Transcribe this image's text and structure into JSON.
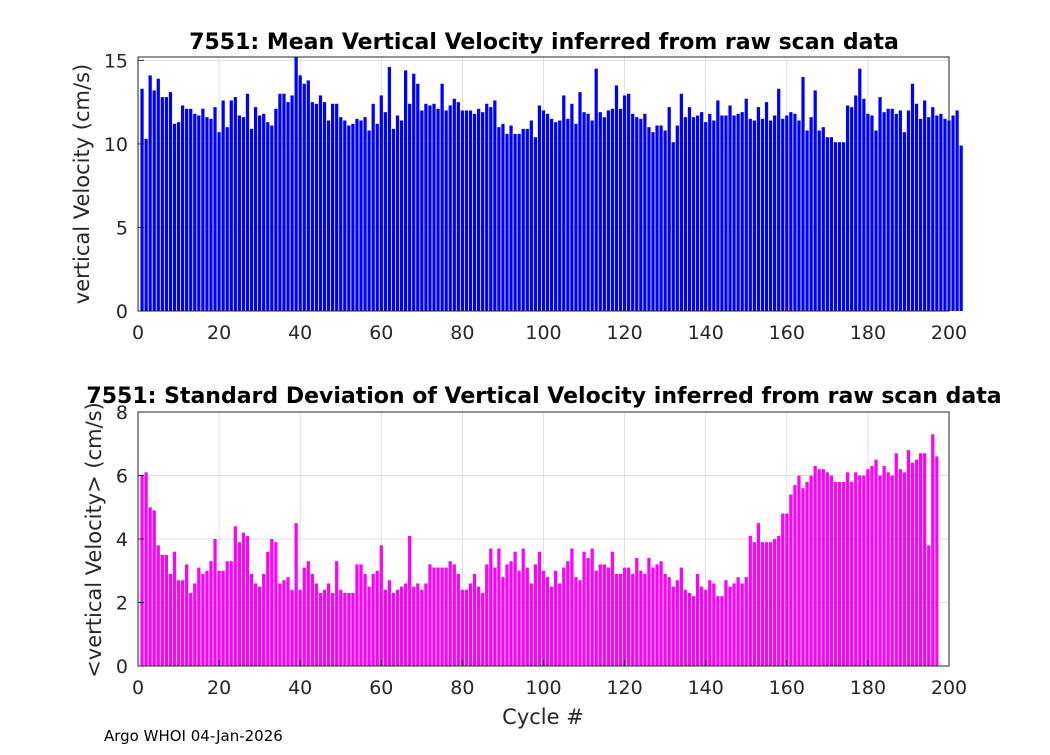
{
  "footer_text": "Argo WHOI 04-Jan-2026",
  "colors": {
    "top_bars": "#0000ff",
    "bottom_bars": "#ff00ff",
    "grid": "#d9d9d9",
    "axis": "#262626"
  },
  "chart_data": [
    {
      "type": "bar",
      "title": "7551: Mean Vertical Velocity inferred from raw scan data",
      "xlabel": "",
      "ylabel": "vertical Velocity (cm/s)",
      "xlim": [
        0,
        200
      ],
      "ylim": [
        0,
        15.2
      ],
      "xticks": [
        0,
        20,
        40,
        60,
        80,
        100,
        120,
        140,
        160,
        180,
        200
      ],
      "yticks": [
        0,
        5,
        10,
        15
      ],
      "grid": true,
      "x_start": 1,
      "values": [
        13.3,
        10.3,
        14.1,
        13.2,
        13.9,
        12.8,
        12.8,
        13.1,
        11.2,
        11.3,
        12.3,
        12.1,
        12.1,
        11.8,
        11.7,
        12.1,
        11.6,
        11.5,
        12.2,
        10.7,
        12.6,
        11.0,
        12.6,
        12.8,
        11.7,
        11.6,
        13.0,
        10.9,
        12.2,
        11.7,
        11.8,
        11.3,
        11.1,
        12.1,
        13.0,
        13.0,
        12.5,
        12.9,
        15.3,
        14.1,
        13.6,
        13.8,
        12.5,
        12.4,
        12.9,
        12.5,
        11.4,
        12.4,
        12.4,
        11.6,
        11.4,
        11.1,
        11.2,
        11.5,
        11.4,
        11.6,
        10.8,
        12.4,
        11.2,
        12.9,
        11.9,
        14.6,
        10.9,
        11.7,
        11.4,
        14.4,
        12.4,
        14.2,
        13.6,
        12.0,
        12.4,
        12.3,
        12.4,
        12.1,
        13.6,
        12.0,
        12.3,
        12.7,
        12.5,
        12.0,
        12.0,
        12.0,
        11.8,
        12.1,
        11.9,
        12.4,
        12.2,
        12.6,
        11.0,
        11.2,
        10.6,
        11.1,
        10.6,
        10.6,
        10.9,
        10.9,
        11.4,
        10.4,
        12.3,
        12.0,
        11.8,
        11.5,
        11.3,
        11.4,
        12.9,
        11.5,
        12.4,
        11.2,
        13.1,
        11.9,
        11.8,
        11.4,
        14.5,
        11.9,
        11.6,
        12.0,
        12.1,
        13.5,
        12.1,
        12.9,
        13.0,
        11.8,
        11.6,
        11.5,
        11.8,
        11.0,
        10.7,
        11.1,
        11.1,
        10.8,
        12.2,
        10.1,
        11.1,
        13.0,
        11.6,
        12.2,
        11.6,
        11.7,
        11.9,
        11.3,
        11.8,
        11.4,
        12.6,
        11.7,
        11.7,
        12.3,
        11.7,
        11.8,
        11.9,
        12.7,
        11.5,
        11.4,
        12.2,
        11.5,
        12.5,
        11.4,
        11.7,
        13.3,
        11.5,
        11.7,
        11.9,
        11.8,
        11.4,
        14.0,
        10.8,
        11.6,
        13.2,
        10.8,
        11.0,
        10.4,
        10.4,
        10.1,
        10.1,
        10.1,
        12.3,
        12.2,
        12.9,
        14.5,
        12.7,
        11.8,
        11.7,
        10.8,
        12.8,
        11.9,
        12.1,
        12.1,
        11.8,
        12.0,
        10.7,
        12.0,
        13.6,
        12.4,
        11.5,
        12.6,
        11.6,
        12.2,
        11.7,
        11.8,
        11.5,
        11.4,
        11.7,
        12.0,
        9.9
      ]
    },
    {
      "type": "bar",
      "title": "7551: Standard Deviation of Vertical Velocity inferred from raw scan data",
      "xlabel": "Cycle #",
      "ylabel": "<vertical Velocity> (cm/s)",
      "xlim": [
        0,
        200
      ],
      "ylim": [
        0,
        8
      ],
      "xticks": [
        0,
        20,
        40,
        60,
        80,
        100,
        120,
        140,
        160,
        180,
        200
      ],
      "yticks": [
        0,
        2,
        4,
        6,
        8
      ],
      "grid": true,
      "x_start": 1,
      "values": [
        6.0,
        6.1,
        5.0,
        4.9,
        3.8,
        3.5,
        3.5,
        2.9,
        3.6,
        2.7,
        2.7,
        3.2,
        2.3,
        2.6,
        3.1,
        2.9,
        3.0,
        3.3,
        4.0,
        3.0,
        3.0,
        3.3,
        3.3,
        4.4,
        3.9,
        4.2,
        4.1,
        2.9,
        2.6,
        2.5,
        2.9,
        3.6,
        4.0,
        3.9,
        2.6,
        2.7,
        2.8,
        2.4,
        4.5,
        2.4,
        3.1,
        3.3,
        2.9,
        2.6,
        2.3,
        2.4,
        2.6,
        2.3,
        3.3,
        2.4,
        2.3,
        2.3,
        2.3,
        3.2,
        3.2,
        2.9,
        2.5,
        2.9,
        3.0,
        3.8,
        2.4,
        2.7,
        2.3,
        2.4,
        2.5,
        2.6,
        4.1,
        2.5,
        2.6,
        2.4,
        2.6,
        3.2,
        3.1,
        3.1,
        3.1,
        3.1,
        3.3,
        3.2,
        2.9,
        2.4,
        2.4,
        2.6,
        2.9,
        2.5,
        2.3,
        3.2,
        3.7,
        3.1,
        3.7,
        2.8,
        3.2,
        3.3,
        3.6,
        3.0,
        3.7,
        3.1,
        2.6,
        3.2,
        3.6,
        3.0,
        2.8,
        2.5,
        3.0,
        2.6,
        3.1,
        3.3,
        3.7,
        2.8,
        2.7,
        3.6,
        3.4,
        3.7,
        3.0,
        3.2,
        3.2,
        3.1,
        3.6,
        2.9,
        2.9,
        3.1,
        3.1,
        2.9,
        3.4,
        3.0,
        2.9,
        3.4,
        3.1,
        3.2,
        3.3,
        2.9,
        2.8,
        2.5,
        2.7,
        3.1,
        2.4,
        2.3,
        2.2,
        2.9,
        2.5,
        2.4,
        2.7,
        2.6,
        2.2,
        2.2,
        2.7,
        2.5,
        2.6,
        2.8,
        2.6,
        2.8,
        4.1,
        3.9,
        4.5,
        3.9,
        3.9,
        3.9,
        4.0,
        4.1,
        4.8,
        4.8,
        5.4,
        5.7,
        6.0,
        5.6,
        5.8,
        6.0,
        6.3,
        6.2,
        6.2,
        6.1,
        6.0,
        5.8,
        5.8,
        5.8,
        6.1,
        5.8,
        6.1,
        6.0,
        6.0,
        6.2,
        6.3,
        6.5,
        6.0,
        6.3,
        6.1,
        6.0,
        6.7,
        6.2,
        6.1,
        6.8,
        6.4,
        6.5,
        6.7,
        6.7,
        3.8,
        7.3,
        6.6
      ]
    }
  ]
}
